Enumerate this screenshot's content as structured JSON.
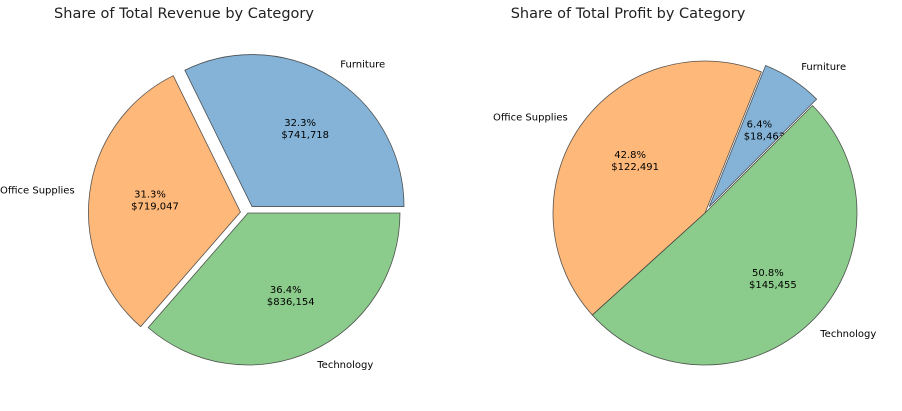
{
  "chart_data": [
    {
      "type": "pie",
      "title": "Share of Total Revenue by Category",
      "categories": [
        "Furniture",
        "Office Supplies",
        "Technology"
      ],
      "values": [
        741718,
        719047,
        836154
      ],
      "percent_labels": [
        "32.3%",
        "31.3%",
        "36.4%"
      ],
      "value_labels": [
        "$741,718",
        "$719,047",
        "$836,154"
      ],
      "colors": [
        "#84b3d7",
        "#feb87a",
        "#8bcb8b"
      ],
      "exploded": [
        "Furniture",
        "Office Supplies"
      ],
      "start_angle_deg": 0,
      "direction": "counterclockwise"
    },
    {
      "type": "pie",
      "title": "Share of Total Profit by Category",
      "categories": [
        "Furniture",
        "Office Supplies",
        "Technology"
      ],
      "values": [
        18463,
        122491,
        145455
      ],
      "percent_labels": [
        "6.4%",
        "42.8%",
        "50.8%"
      ],
      "value_labels": [
        "$18,463",
        "$122,491",
        "$145,455"
      ],
      "colors": [
        "#84b3d7",
        "#feb87a",
        "#8bcb8b"
      ],
      "exploded": [
        "Furniture"
      ],
      "start_angle_deg": 45,
      "direction": "counterclockwise"
    }
  ]
}
